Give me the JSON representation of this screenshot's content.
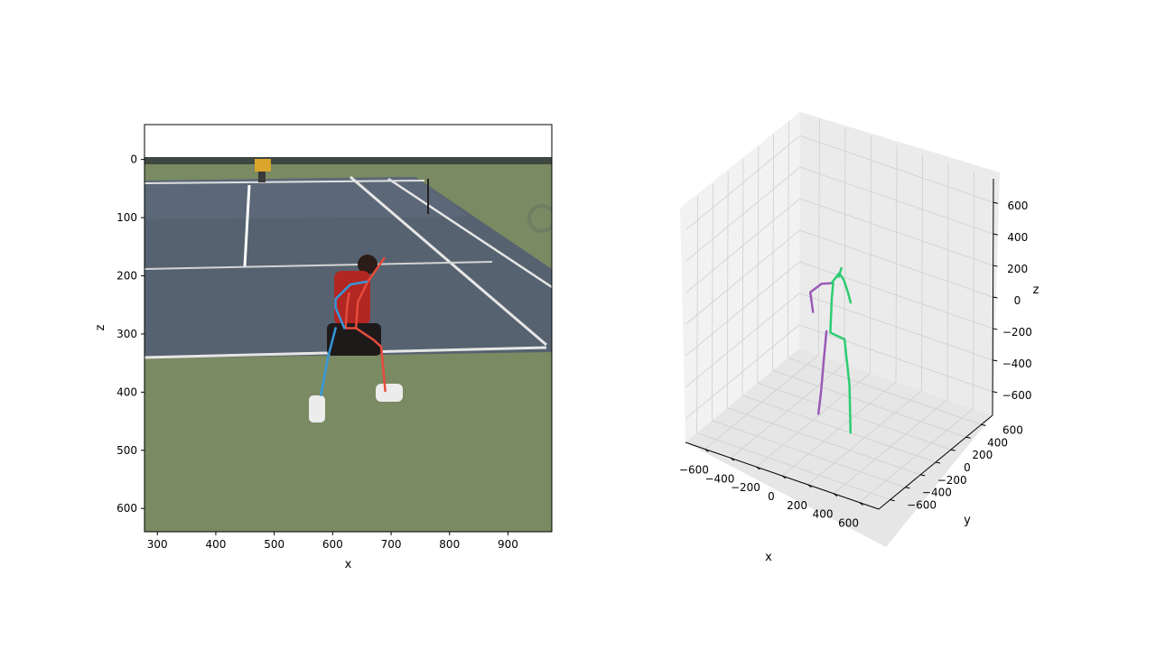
{
  "chart_data": [
    {
      "type": "image-with-pose-overlay",
      "xlabel": "x",
      "ylabel": "z",
      "x_ticks": [
        300,
        400,
        500,
        600,
        700,
        800,
        900
      ],
      "y_ticks": [
        0,
        100,
        200,
        300,
        400,
        500,
        600
      ],
      "xlim": [
        278,
        975
      ],
      "ylim": [
        640,
        -60
      ],
      "image_extent": {
        "x": [
          278,
          975
        ],
        "y": [
          -3,
          640
        ]
      },
      "colors": {
        "left_limb": "#3498db",
        "right_limb": "#e74c3c"
      },
      "skeleton_segments": [
        {
          "side": "right",
          "points": [
            [
              688,
              170
            ],
            [
              660,
              210
            ],
            [
              643,
              245
            ],
            [
              640,
              290
            ]
          ]
        },
        {
          "side": "right",
          "points": [
            [
              640,
              290
            ],
            [
              670,
              310
            ],
            [
              683,
              322
            ],
            [
              690,
              398
            ]
          ]
        },
        {
          "side": "right",
          "points": [
            [
              640,
              290
            ],
            [
              622,
              290
            ],
            [
              625,
              250
            ],
            [
              628,
              230
            ]
          ]
        },
        {
          "side": "left",
          "points": [
            [
              658,
              210
            ],
            [
              630,
              215
            ],
            [
              605,
              240
            ],
            [
              605,
              255
            ],
            [
              620,
              290
            ]
          ]
        },
        {
          "side": "left",
          "points": [
            [
              605,
              290
            ],
            [
              592,
              340
            ],
            [
              580,
              405
            ]
          ]
        }
      ]
    },
    {
      "type": "3d-line",
      "xlabel": "x",
      "ylabel": "y",
      "zlabel": "z",
      "x_ticks": [
        -600,
        -400,
        -200,
        0,
        200,
        400,
        600
      ],
      "y_ticks": [
        -600,
        -400,
        -200,
        0,
        200,
        400,
        600
      ],
      "z_ticks": [
        -600,
        -400,
        -200,
        0,
        200,
        400,
        600
      ],
      "xlim": [
        -750,
        750
      ],
      "ylim": [
        -750,
        750
      ],
      "zlim": [
        -750,
        750
      ],
      "colors": {
        "left_limb": "#9b59b6",
        "right_limb": "#2ecc71"
      },
      "skeleton_segments": [
        {
          "side": "left",
          "points": [
            [
              -50,
              0,
              160
            ],
            [
              -150,
              20,
              120
            ],
            [
              -250,
              40,
              30
            ],
            [
              -240,
              60,
              -100
            ]
          ]
        },
        {
          "side": "left",
          "points": [
            [
              -100,
              0,
              -160
            ],
            [
              -120,
              0,
              -350
            ],
            [
              -140,
              0,
              -550
            ],
            [
              -160,
              0,
              -700
            ]
          ]
        },
        {
          "side": "right",
          "points": [
            [
              -60,
              0,
              160
            ],
            [
              -20,
              30,
              220
            ],
            [
              10,
              40,
              180
            ],
            [
              30,
              60,
              100
            ],
            [
              40,
              80,
              30
            ]
          ]
        },
        {
          "side": "right",
          "points": [
            [
              -50,
              0,
              160
            ],
            [
              -60,
              0,
              60
            ],
            [
              -70,
              0,
              -160
            ],
            [
              40,
              0,
              -170
            ],
            [
              80,
              0,
              -450
            ],
            [
              90,
              0,
              -750
            ]
          ]
        },
        {
          "side": "right",
          "points": [
            [
              -20,
              20,
              200
            ],
            [
              -10,
              40,
              250
            ]
          ]
        }
      ]
    }
  ]
}
